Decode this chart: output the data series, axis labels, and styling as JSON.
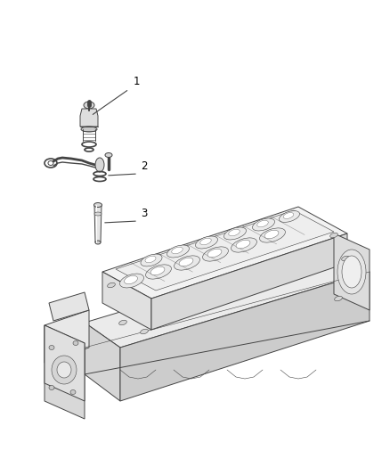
{
  "background_color": "#ffffff",
  "line_color": "#444444",
  "label_color": "#000000",
  "fig_width": 4.38,
  "fig_height": 5.33,
  "dpi": 100,
  "lw": 0.7,
  "lw_thin": 0.4,
  "lw_thick": 1.2
}
